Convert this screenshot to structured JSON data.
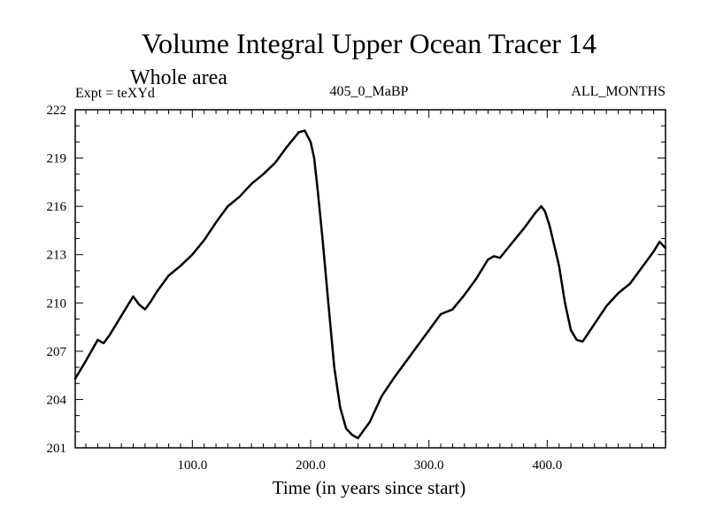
{
  "chart_data": {
    "type": "line",
    "title": "Volume Integral Upper Ocean Tracer 14",
    "subtitle": "Whole area",
    "annotations": {
      "left": "Expt = teXYd",
      "center": "405_0_MaBP",
      "right": "ALL_MONTHS"
    },
    "xlabel": "Time (in years since start)",
    "ylabel": "",
    "xlim": [
      1,
      500
    ],
    "ylim": [
      201,
      222
    ],
    "x_ticks": [
      100,
      200,
      300,
      400
    ],
    "x_tick_labels": [
      "100.0",
      "200.0",
      "300.0",
      "400.0"
    ],
    "y_ticks": [
      201,
      204,
      207,
      210,
      213,
      216,
      219,
      222
    ],
    "y_tick_labels": [
      "201",
      "204",
      "207",
      "210",
      "213",
      "216",
      "219",
      "222"
    ],
    "grid": false,
    "series": [
      {
        "color": "#000000",
        "x": [
          1,
          10,
          20,
          25,
          30,
          40,
          50,
          55,
          60,
          65,
          70,
          80,
          90,
          100,
          110,
          120,
          130,
          140,
          150,
          160,
          170,
          180,
          190,
          195,
          200,
          203,
          206,
          210,
          215,
          220,
          225,
          230,
          235,
          240,
          245,
          250,
          260,
          270,
          280,
          290,
          300,
          310,
          320,
          330,
          340,
          350,
          355,
          360,
          370,
          380,
          390,
          395,
          398,
          402,
          410,
          415,
          420,
          425,
          430,
          440,
          450,
          460,
          470,
          480,
          490,
          495,
          500
        ],
        "y": [
          205.3,
          206.4,
          207.7,
          207.5,
          208.0,
          209.2,
          210.4,
          209.9,
          209.6,
          210.1,
          210.7,
          211.7,
          212.3,
          213.0,
          213.9,
          215.0,
          216.0,
          216.6,
          217.4,
          218.0,
          218.7,
          219.7,
          220.6,
          220.7,
          220.0,
          219.0,
          217.0,
          214.0,
          210.0,
          206.0,
          203.5,
          202.2,
          201.8,
          201.6,
          202.1,
          202.6,
          204.2,
          205.3,
          206.3,
          207.3,
          208.3,
          209.3,
          209.6,
          210.5,
          211.5,
          212.7,
          212.9,
          212.8,
          213.7,
          214.6,
          215.6,
          216.0,
          215.7,
          214.8,
          212.3,
          210.0,
          208.3,
          207.7,
          207.6,
          208.7,
          209.8,
          210.6,
          211.2,
          212.2,
          213.2,
          213.8,
          213.4
        ]
      }
    ]
  }
}
